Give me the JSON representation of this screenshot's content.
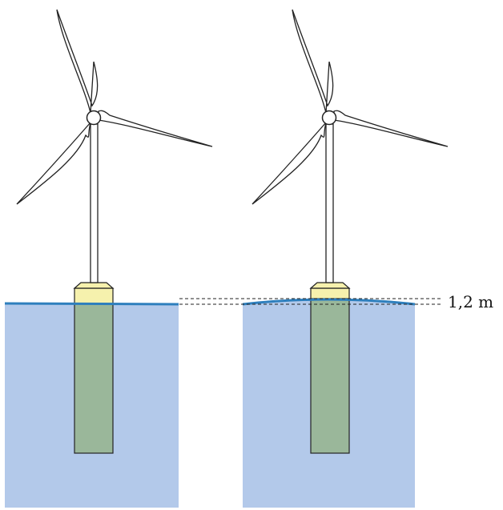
{
  "annotation": {
    "height_difference_label": "1,2 m"
  },
  "turbines": [
    {
      "name": "left-turbine",
      "water_surface": "flat"
    },
    {
      "name": "right-turbine",
      "water_surface": "raised"
    }
  ],
  "colors": {
    "water": "#b3c9ea",
    "water_surface_line": "#2e7fbd",
    "submerged_column": "#9ab79a",
    "above_water_column": "#f6f1ad",
    "outline": "#222222",
    "background": "#ffffff"
  }
}
